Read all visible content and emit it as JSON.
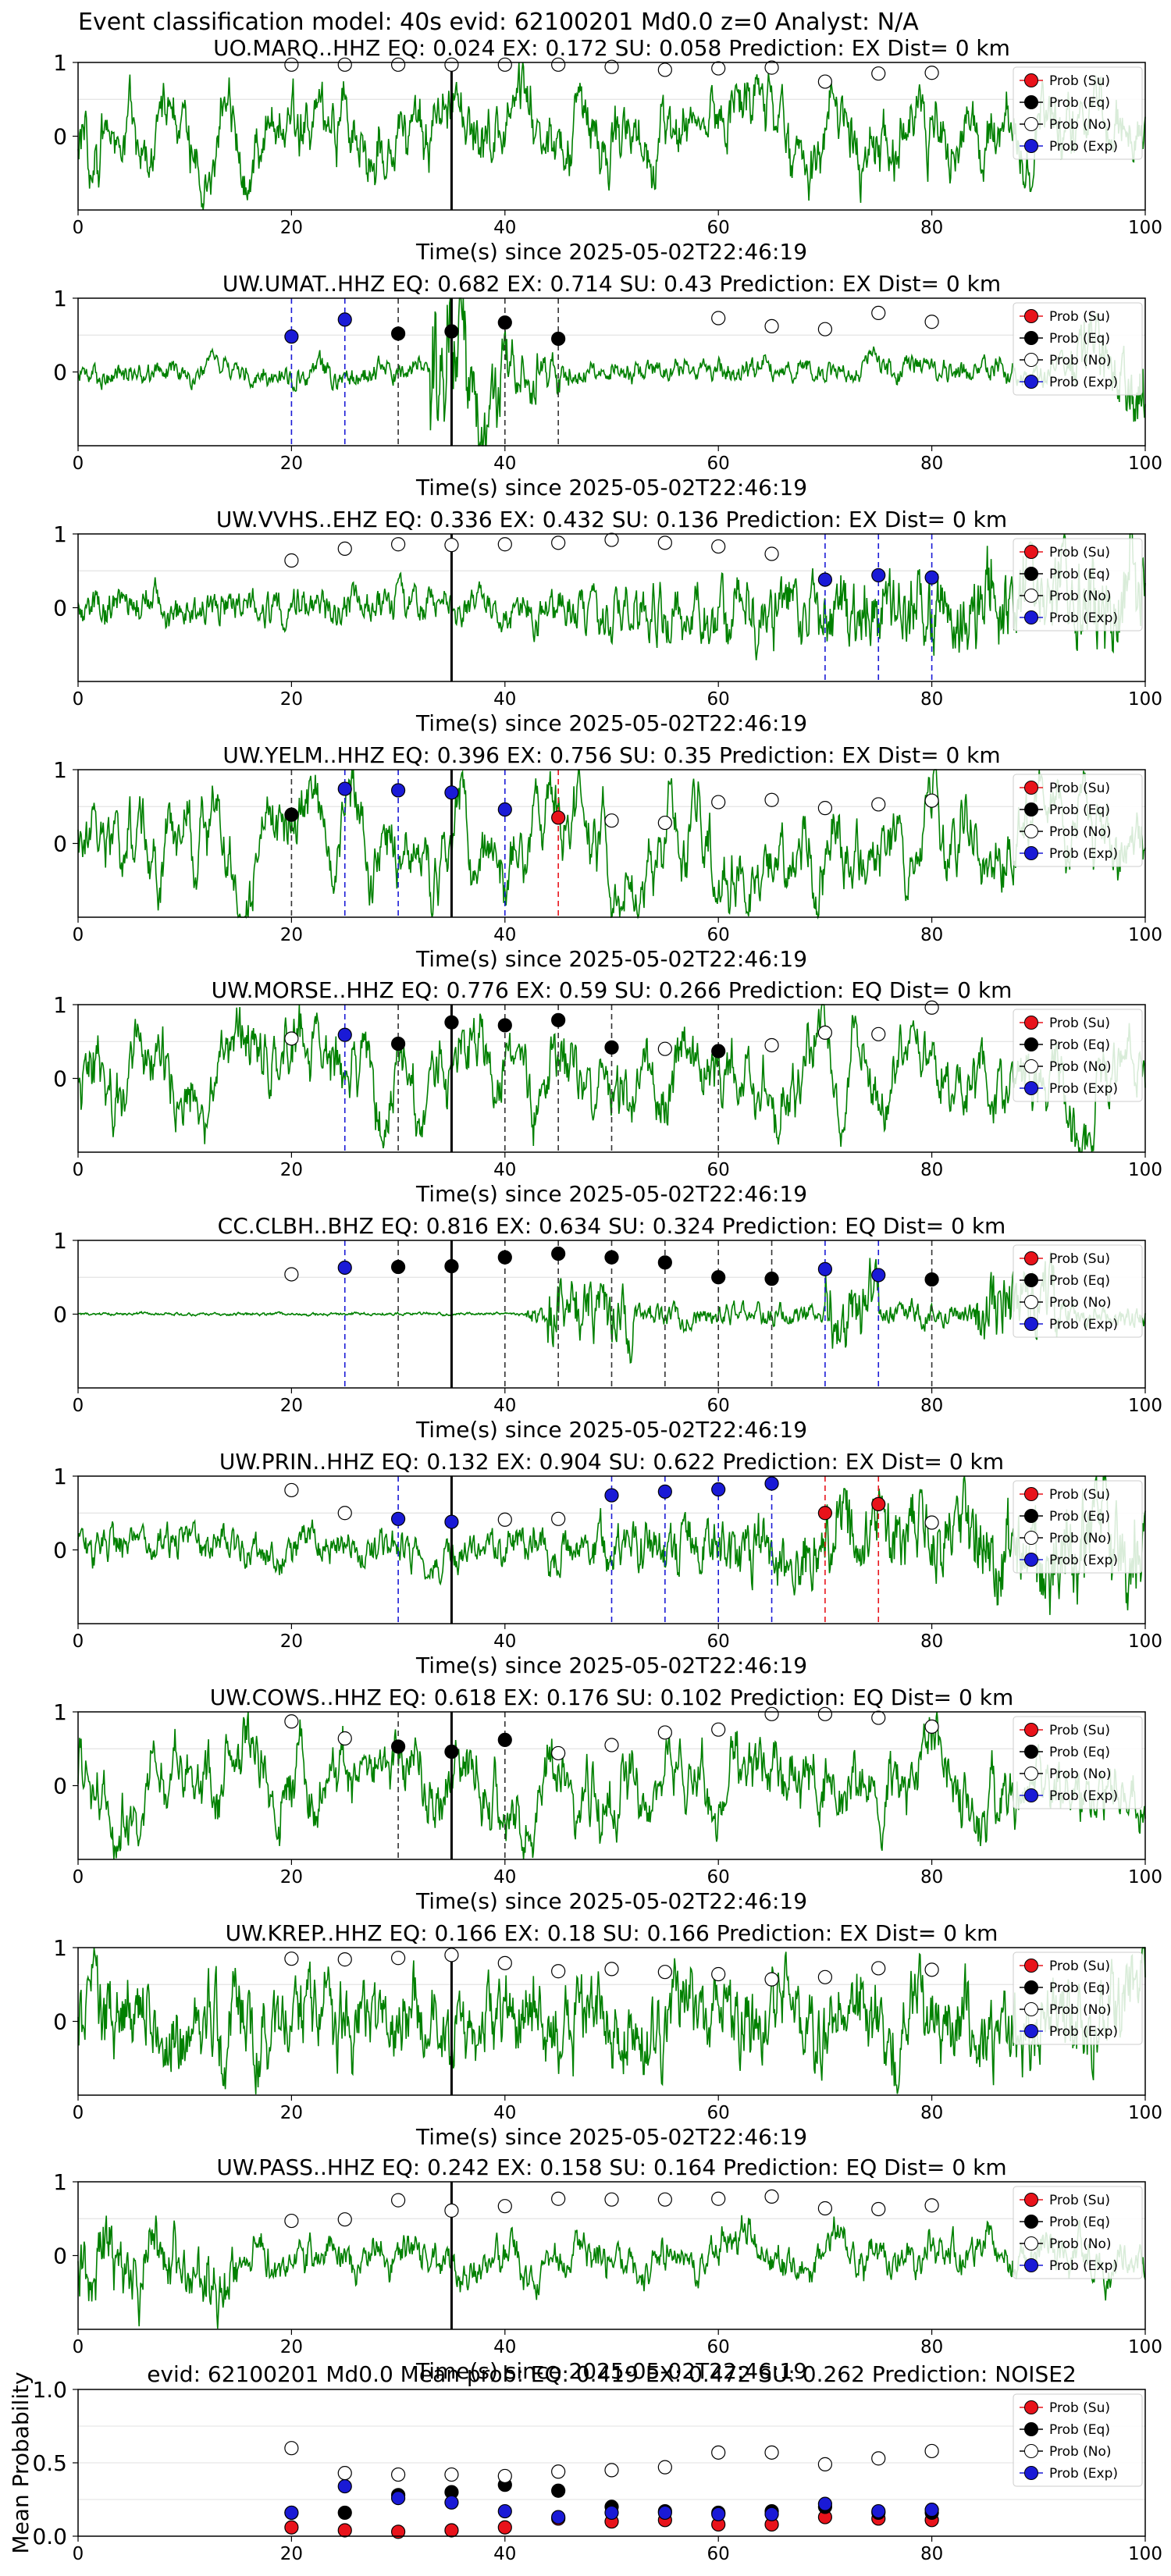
{
  "figure": {
    "suptitle": "Event classification model: 40s evid: 62100201 Md0.0 z=0 Analyst: N/A"
  },
  "legend_labels": [
    "Prob (Su)",
    "Prob (Eq)",
    "Prob (No)",
    "Prob (Exp)"
  ],
  "colors": {
    "waveform": "#008000",
    "su": "#e8131b",
    "eq": "#000000",
    "no": "#ffffff",
    "exp": "#1a1ad6",
    "arrival_line": "#000000"
  },
  "chart_data": [
    {
      "type": "line",
      "station": "UO.MARQ..HHZ",
      "title": "UO.MARQ..HHZ   EQ: 0.024  EX: 0.172  SU: 0.058   Prediction: EX    Dist= 0 km",
      "xlabel": "Time(s) since 2025-05-02T22:46:19",
      "xlim": [
        0,
        100
      ],
      "ylim": [
        -1,
        1
      ],
      "xticks": [
        "0",
        "20",
        "40",
        "60",
        "80",
        "100"
      ],
      "yticks": [
        "1",
        "0"
      ],
      "legend_position": "upper-right",
      "grid": true,
      "arrival_time": 35,
      "waveform_style": "mixed",
      "points": [
        {
          "t": 20,
          "p": 0.97,
          "cls": "no"
        },
        {
          "t": 25,
          "p": 0.97,
          "cls": "no"
        },
        {
          "t": 30,
          "p": 0.97,
          "cls": "no"
        },
        {
          "t": 35,
          "p": 0.97,
          "cls": "no"
        },
        {
          "t": 40,
          "p": 0.97,
          "cls": "no"
        },
        {
          "t": 45,
          "p": 0.97,
          "cls": "no"
        },
        {
          "t": 50,
          "p": 0.94,
          "cls": "no"
        },
        {
          "t": 55,
          "p": 0.9,
          "cls": "no"
        },
        {
          "t": 60,
          "p": 0.92,
          "cls": "no"
        },
        {
          "t": 65,
          "p": 0.93,
          "cls": "no"
        },
        {
          "t": 70,
          "p": 0.74,
          "cls": "no"
        },
        {
          "t": 75,
          "p": 0.85,
          "cls": "no"
        },
        {
          "t": 80,
          "p": 0.86,
          "cls": "no"
        }
      ]
    },
    {
      "type": "line",
      "station": "UW.UMAT..HHZ",
      "title": "UW.UMAT..HHZ   EQ: 0.682  EX: 0.714  SU: 0.43   Prediction: EX    Dist= 0 km",
      "xlabel": "Time(s) since 2025-05-02T22:46:19",
      "xlim": [
        0,
        100
      ],
      "ylim": [
        -1,
        1
      ],
      "xticks": [
        "0",
        "20",
        "40",
        "60",
        "80",
        "100"
      ],
      "yticks": [
        "1",
        "0"
      ],
      "legend_position": "upper-right",
      "grid": true,
      "arrival_time": 35,
      "waveform_style": "burst",
      "points": [
        {
          "t": 20,
          "p": 0.48,
          "cls": "exp"
        },
        {
          "t": 25,
          "p": 0.71,
          "cls": "exp"
        },
        {
          "t": 30,
          "p": 0.52,
          "cls": "eq"
        },
        {
          "t": 35,
          "p": 0.55,
          "cls": "eq"
        },
        {
          "t": 40,
          "p": 0.67,
          "cls": "eq"
        },
        {
          "t": 45,
          "p": 0.45,
          "cls": "eq"
        },
        {
          "t": 60,
          "p": 0.73,
          "cls": "no"
        },
        {
          "t": 65,
          "p": 0.62,
          "cls": "no"
        },
        {
          "t": 70,
          "p": 0.58,
          "cls": "no"
        },
        {
          "t": 75,
          "p": 0.8,
          "cls": "no"
        },
        {
          "t": 80,
          "p": 0.68,
          "cls": "no"
        }
      ]
    },
    {
      "type": "line",
      "station": "UW.VVHS..EHZ",
      "title": "UW.VVHS..EHZ   EQ: 0.336  EX: 0.432  SU: 0.136   Prediction: EX    Dist= 0 km",
      "xlabel": "Time(s) since 2025-05-02T22:46:19",
      "xlim": [
        0,
        100
      ],
      "ylim": [
        -1,
        1
      ],
      "xticks": [
        "0",
        "20",
        "40",
        "60",
        "80",
        "100"
      ],
      "yticks": [
        "1",
        "0"
      ],
      "legend_position": "upper-right",
      "grid": true,
      "arrival_time": 35,
      "waveform_style": "growing",
      "points": [
        {
          "t": 20,
          "p": 0.64,
          "cls": "no"
        },
        {
          "t": 25,
          "p": 0.8,
          "cls": "no"
        },
        {
          "t": 30,
          "p": 0.86,
          "cls": "no"
        },
        {
          "t": 35,
          "p": 0.85,
          "cls": "no"
        },
        {
          "t": 40,
          "p": 0.86,
          "cls": "no"
        },
        {
          "t": 45,
          "p": 0.88,
          "cls": "no"
        },
        {
          "t": 50,
          "p": 0.92,
          "cls": "no"
        },
        {
          "t": 55,
          "p": 0.88,
          "cls": "no"
        },
        {
          "t": 60,
          "p": 0.83,
          "cls": "no"
        },
        {
          "t": 65,
          "p": 0.73,
          "cls": "no"
        },
        {
          "t": 70,
          "p": 0.38,
          "cls": "exp"
        },
        {
          "t": 75,
          "p": 0.44,
          "cls": "exp"
        },
        {
          "t": 80,
          "p": 0.41,
          "cls": "exp"
        }
      ]
    },
    {
      "type": "line",
      "station": "UW.YELM..HHZ",
      "title": "UW.YELM..HHZ   EQ: 0.396  EX: 0.756  SU: 0.35   Prediction: EX    Dist= 0 km",
      "xlabel": "Time(s) since 2025-05-02T22:46:19",
      "xlim": [
        0,
        100
      ],
      "ylim": [
        -1,
        1
      ],
      "xticks": [
        "0",
        "20",
        "40",
        "60",
        "80",
        "100"
      ],
      "yticks": [
        "1",
        "0"
      ],
      "legend_position": "upper-right",
      "grid": true,
      "arrival_time": 35,
      "waveform_style": "smooth",
      "points": [
        {
          "t": 20,
          "p": 0.39,
          "cls": "eq"
        },
        {
          "t": 25,
          "p": 0.74,
          "cls": "exp"
        },
        {
          "t": 30,
          "p": 0.72,
          "cls": "exp"
        },
        {
          "t": 35,
          "p": 0.69,
          "cls": "exp"
        },
        {
          "t": 40,
          "p": 0.46,
          "cls": "exp"
        },
        {
          "t": 45,
          "p": 0.35,
          "cls": "su"
        },
        {
          "t": 50,
          "p": 0.31,
          "cls": "no"
        },
        {
          "t": 55,
          "p": 0.28,
          "cls": "no"
        },
        {
          "t": 60,
          "p": 0.56,
          "cls": "no"
        },
        {
          "t": 65,
          "p": 0.59,
          "cls": "no"
        },
        {
          "t": 70,
          "p": 0.48,
          "cls": "no"
        },
        {
          "t": 75,
          "p": 0.53,
          "cls": "no"
        },
        {
          "t": 80,
          "p": 0.58,
          "cls": "no"
        }
      ]
    },
    {
      "type": "line",
      "station": "UW.MORSE..HHZ",
      "title": "UW.MORSE..HHZ   EQ: 0.776  EX: 0.59  SU: 0.266   Prediction: EQ    Dist= 0 km",
      "xlabel": "Time(s) since 2025-05-02T22:46:19",
      "xlim": [
        0,
        100
      ],
      "ylim": [
        -1,
        1
      ],
      "xticks": [
        "0",
        "20",
        "40",
        "60",
        "80",
        "100"
      ],
      "yticks": [
        "1",
        "0"
      ],
      "legend_position": "upper-right",
      "grid": true,
      "arrival_time": 35,
      "waveform_style": "mixed",
      "points": [
        {
          "t": 20,
          "p": 0.54,
          "cls": "no"
        },
        {
          "t": 25,
          "p": 0.59,
          "cls": "exp"
        },
        {
          "t": 30,
          "p": 0.47,
          "cls": "eq"
        },
        {
          "t": 35,
          "p": 0.76,
          "cls": "eq"
        },
        {
          "t": 40,
          "p": 0.72,
          "cls": "eq"
        },
        {
          "t": 45,
          "p": 0.79,
          "cls": "eq"
        },
        {
          "t": 50,
          "p": 0.42,
          "cls": "eq"
        },
        {
          "t": 55,
          "p": 0.4,
          "cls": "no"
        },
        {
          "t": 60,
          "p": 0.37,
          "cls": "eq"
        },
        {
          "t": 65,
          "p": 0.45,
          "cls": "no"
        },
        {
          "t": 70,
          "p": 0.62,
          "cls": "no"
        },
        {
          "t": 75,
          "p": 0.6,
          "cls": "no"
        },
        {
          "t": 80,
          "p": 0.96,
          "cls": "no"
        }
      ]
    },
    {
      "type": "line",
      "station": "CC.CLBH..BHZ",
      "title": "CC.CLBH..BHZ   EQ: 0.816  EX: 0.634  SU: 0.324   Prediction: EQ    Dist= 0 km",
      "xlabel": "Time(s) since 2025-05-02T22:46:19",
      "xlim": [
        0,
        100
      ],
      "ylim": [
        -1,
        1
      ],
      "xticks": [
        "0",
        "20",
        "40",
        "60",
        "80",
        "100"
      ],
      "yticks": [
        "1",
        "0"
      ],
      "legend_position": "upper-right",
      "grid": true,
      "arrival_time": 35,
      "waveform_style": "quiet-late",
      "points": [
        {
          "t": 20,
          "p": 0.54,
          "cls": "no"
        },
        {
          "t": 25,
          "p": 0.63,
          "cls": "exp"
        },
        {
          "t": 30,
          "p": 0.64,
          "cls": "eq"
        },
        {
          "t": 35,
          "p": 0.65,
          "cls": "eq"
        },
        {
          "t": 40,
          "p": 0.77,
          "cls": "eq"
        },
        {
          "t": 45,
          "p": 0.82,
          "cls": "eq"
        },
        {
          "t": 50,
          "p": 0.77,
          "cls": "eq"
        },
        {
          "t": 55,
          "p": 0.7,
          "cls": "eq"
        },
        {
          "t": 60,
          "p": 0.5,
          "cls": "eq"
        },
        {
          "t": 65,
          "p": 0.48,
          "cls": "eq"
        },
        {
          "t": 70,
          "p": 0.61,
          "cls": "exp"
        },
        {
          "t": 75,
          "p": 0.53,
          "cls": "exp"
        },
        {
          "t": 80,
          "p": 0.47,
          "cls": "eq"
        }
      ]
    },
    {
      "type": "line",
      "station": "UW.PRIN..HHZ",
      "title": "UW.PRIN..HHZ   EQ: 0.132  EX: 0.904  SU: 0.622   Prediction: EX    Dist= 0 km",
      "xlabel": "Time(s) since 2025-05-02T22:46:19",
      "xlim": [
        0,
        100
      ],
      "ylim": [
        -1,
        1
      ],
      "xticks": [
        "0",
        "20",
        "40",
        "60",
        "80",
        "100"
      ],
      "yticks": [
        "1",
        "0"
      ],
      "legend_position": "upper-right",
      "grid": true,
      "arrival_time": 35,
      "waveform_style": "growing",
      "points": [
        {
          "t": 20,
          "p": 0.81,
          "cls": "no"
        },
        {
          "t": 25,
          "p": 0.5,
          "cls": "no"
        },
        {
          "t": 30,
          "p": 0.42,
          "cls": "exp"
        },
        {
          "t": 35,
          "p": 0.38,
          "cls": "exp"
        },
        {
          "t": 40,
          "p": 0.41,
          "cls": "no"
        },
        {
          "t": 45,
          "p": 0.42,
          "cls": "no"
        },
        {
          "t": 50,
          "p": 0.74,
          "cls": "exp"
        },
        {
          "t": 55,
          "p": 0.79,
          "cls": "exp"
        },
        {
          "t": 60,
          "p": 0.82,
          "cls": "exp"
        },
        {
          "t": 65,
          "p": 0.9,
          "cls": "exp"
        },
        {
          "t": 70,
          "p": 0.5,
          "cls": "su"
        },
        {
          "t": 75,
          "p": 0.62,
          "cls": "su"
        },
        {
          "t": 80,
          "p": 0.37,
          "cls": "no"
        }
      ]
    },
    {
      "type": "line",
      "station": "UW.COWS..HHZ",
      "title": "UW.COWS..HHZ   EQ: 0.618  EX: 0.176  SU: 0.102   Prediction: EQ    Dist= 0 km",
      "xlabel": "Time(s) since 2025-05-02T22:46:19",
      "xlim": [
        0,
        100
      ],
      "ylim": [
        -1,
        1
      ],
      "xticks": [
        "0",
        "20",
        "40",
        "60",
        "80",
        "100"
      ],
      "yticks": [
        "1",
        "0"
      ],
      "legend_position": "upper-right",
      "grid": true,
      "arrival_time": 35,
      "waveform_style": "mixed",
      "points": [
        {
          "t": 20,
          "p": 0.87,
          "cls": "no"
        },
        {
          "t": 25,
          "p": 0.64,
          "cls": "no"
        },
        {
          "t": 30,
          "p": 0.53,
          "cls": "eq"
        },
        {
          "t": 35,
          "p": 0.46,
          "cls": "eq"
        },
        {
          "t": 40,
          "p": 0.62,
          "cls": "eq"
        },
        {
          "t": 45,
          "p": 0.44,
          "cls": "no"
        },
        {
          "t": 50,
          "p": 0.55,
          "cls": "no"
        },
        {
          "t": 55,
          "p": 0.72,
          "cls": "no"
        },
        {
          "t": 60,
          "p": 0.76,
          "cls": "no"
        },
        {
          "t": 65,
          "p": 0.97,
          "cls": "no"
        },
        {
          "t": 70,
          "p": 0.97,
          "cls": "no"
        },
        {
          "t": 75,
          "p": 0.92,
          "cls": "no"
        },
        {
          "t": 80,
          "p": 0.8,
          "cls": "no"
        }
      ]
    },
    {
      "type": "line",
      "station": "UW.KREP..HHZ",
      "title": "UW.KREP..HHZ   EQ: 0.166  EX: 0.18  SU: 0.166   Prediction: EX    Dist= 0 km",
      "xlabel": "Time(s) since 2025-05-02T22:46:19",
      "xlim": [
        0,
        100
      ],
      "ylim": [
        -1,
        1
      ],
      "xticks": [
        "0",
        "20",
        "40",
        "60",
        "80",
        "100"
      ],
      "yticks": [
        "1",
        "0"
      ],
      "legend_position": "upper-right",
      "grid": true,
      "arrival_time": 35,
      "waveform_style": "dense",
      "points": [
        {
          "t": 20,
          "p": 0.85,
          "cls": "no"
        },
        {
          "t": 25,
          "p": 0.84,
          "cls": "no"
        },
        {
          "t": 30,
          "p": 0.86,
          "cls": "no"
        },
        {
          "t": 35,
          "p": 0.9,
          "cls": "no"
        },
        {
          "t": 40,
          "p": 0.79,
          "cls": "no"
        },
        {
          "t": 45,
          "p": 0.68,
          "cls": "no"
        },
        {
          "t": 50,
          "p": 0.71,
          "cls": "no"
        },
        {
          "t": 55,
          "p": 0.67,
          "cls": "no"
        },
        {
          "t": 60,
          "p": 0.64,
          "cls": "no"
        },
        {
          "t": 65,
          "p": 0.57,
          "cls": "no"
        },
        {
          "t": 70,
          "p": 0.6,
          "cls": "no"
        },
        {
          "t": 75,
          "p": 0.72,
          "cls": "no"
        },
        {
          "t": 80,
          "p": 0.7,
          "cls": "no"
        }
      ]
    },
    {
      "type": "line",
      "station": "UW.PASS..HHZ",
      "title": "UW.PASS..HHZ   EQ: 0.242  EX: 0.158  SU: 0.164   Prediction: EQ    Dist= 0 km",
      "xlabel": "Time(s) since 2025-05-02T22:46:19",
      "xlim": [
        0,
        100
      ],
      "ylim": [
        -1,
        1
      ],
      "xticks": [
        "0",
        "20",
        "40",
        "60",
        "80",
        "100"
      ],
      "yticks": [
        "1",
        "0"
      ],
      "legend_position": "upper-right",
      "grid": true,
      "arrival_time": 35,
      "waveform_style": "early",
      "points": [
        {
          "t": 20,
          "p": 0.47,
          "cls": "no"
        },
        {
          "t": 25,
          "p": 0.49,
          "cls": "no"
        },
        {
          "t": 30,
          "p": 0.75,
          "cls": "no"
        },
        {
          "t": 35,
          "p": 0.61,
          "cls": "no"
        },
        {
          "t": 40,
          "p": 0.67,
          "cls": "no"
        },
        {
          "t": 45,
          "p": 0.77,
          "cls": "no"
        },
        {
          "t": 50,
          "p": 0.76,
          "cls": "no"
        },
        {
          "t": 55,
          "p": 0.76,
          "cls": "no"
        },
        {
          "t": 60,
          "p": 0.77,
          "cls": "no"
        },
        {
          "t": 65,
          "p": 0.8,
          "cls": "no"
        },
        {
          "t": 70,
          "p": 0.64,
          "cls": "no"
        },
        {
          "t": 75,
          "p": 0.63,
          "cls": "no"
        },
        {
          "t": 80,
          "p": 0.68,
          "cls": "no"
        }
      ]
    },
    {
      "type": "scatter",
      "title": "evid: 62100201  Md0.0   Mean prob:   EQ: 0.419  EX: 0.472  SU: 0.262   Prediction: NOISE2",
      "xlabel": "",
      "ylabel": "Mean Probability",
      "xlim": [
        0,
        100
      ],
      "ylim": [
        0,
        1
      ],
      "xticks": [
        "0",
        "20",
        "40",
        "60",
        "80",
        "100"
      ],
      "yticks": [
        "0.0",
        "0.5",
        "1.0"
      ],
      "legend_position": "upper-right",
      "grid": true,
      "x": [
        20,
        25,
        30,
        35,
        40,
        45,
        50,
        55,
        60,
        65,
        70,
        75,
        80
      ],
      "series": [
        {
          "cls": "su",
          "name": "Prob (Su)",
          "values": [
            0.06,
            0.04,
            0.03,
            0.04,
            0.06,
            0.12,
            0.1,
            0.11,
            0.08,
            0.08,
            0.13,
            0.12,
            0.11
          ]
        },
        {
          "cls": "eq",
          "name": "Prob (Eq)",
          "values": [
            0.16,
            0.16,
            0.28,
            0.3,
            0.35,
            0.31,
            0.2,
            0.17,
            0.16,
            0.17,
            0.2,
            0.16,
            0.16
          ]
        },
        {
          "cls": "no",
          "name": "Prob (No)",
          "values": [
            0.6,
            0.43,
            0.42,
            0.42,
            0.41,
            0.44,
            0.45,
            0.47,
            0.57,
            0.57,
            0.49,
            0.53,
            0.58
          ]
        },
        {
          "cls": "exp",
          "name": "Prob (Exp)",
          "values": [
            0.16,
            0.34,
            0.26,
            0.23,
            0.17,
            0.13,
            0.16,
            0.16,
            0.15,
            0.15,
            0.22,
            0.17,
            0.18
          ]
        }
      ]
    }
  ]
}
